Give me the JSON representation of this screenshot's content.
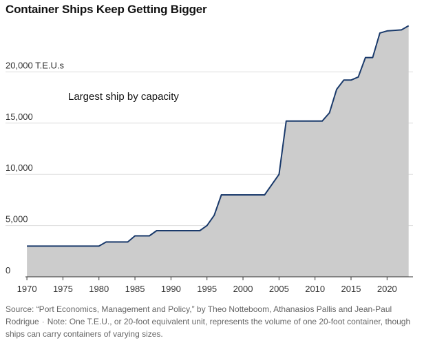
{
  "chart_data": {
    "type": "area",
    "title": "Container Ships Keep Getting Bigger",
    "annotation": "Largest ship by capacity",
    "unit_label": "20,000 T.E.U.s",
    "ylim": [
      0,
      25000
    ],
    "xlim": [
      1969.8,
      2023.6
    ],
    "y_ticks": [
      {
        "value": 0,
        "label": "0"
      },
      {
        "value": 5000,
        "label": "5,000"
      },
      {
        "value": 10000,
        "label": "10,000"
      },
      {
        "value": 15000,
        "label": "15,000"
      },
      {
        "value": 20000,
        "label": "20,000 T.E.U.s"
      }
    ],
    "x_ticks": [
      1970,
      1975,
      1980,
      1985,
      1990,
      1995,
      2000,
      2005,
      2010,
      2015,
      2020
    ],
    "x": [
      1970,
      1980,
      1981,
      1984,
      1985,
      1987,
      1988,
      1994,
      1995,
      1996,
      1997,
      2003,
      2005,
      2006,
      2011,
      2012,
      2013,
      2014,
      2015,
      2016,
      2017,
      2018,
      2019,
      2020,
      2022,
      2023
    ],
    "y": [
      3000,
      3000,
      3400,
      3400,
      4000,
      4000,
      4500,
      4500,
      5000,
      6000,
      8000,
      8000,
      10000,
      15200,
      15200,
      16000,
      18300,
      19200,
      19200,
      19500,
      21400,
      21400,
      23800,
      24000,
      24100,
      24500
    ],
    "line_color": "#1a3a6b",
    "fill_color": "#cccccc"
  },
  "source": {
    "text": "Source: “Port Economics, Management and Policy,” by Theo Notteboom, Athanasios Pallis and Jean-Paul Rodrigue",
    "separator": "·",
    "note": "Note: One T.E.U., or 20-foot equivalent unit, represents the volume of one 20-foot container, though ships can carry containers of varying sizes."
  }
}
